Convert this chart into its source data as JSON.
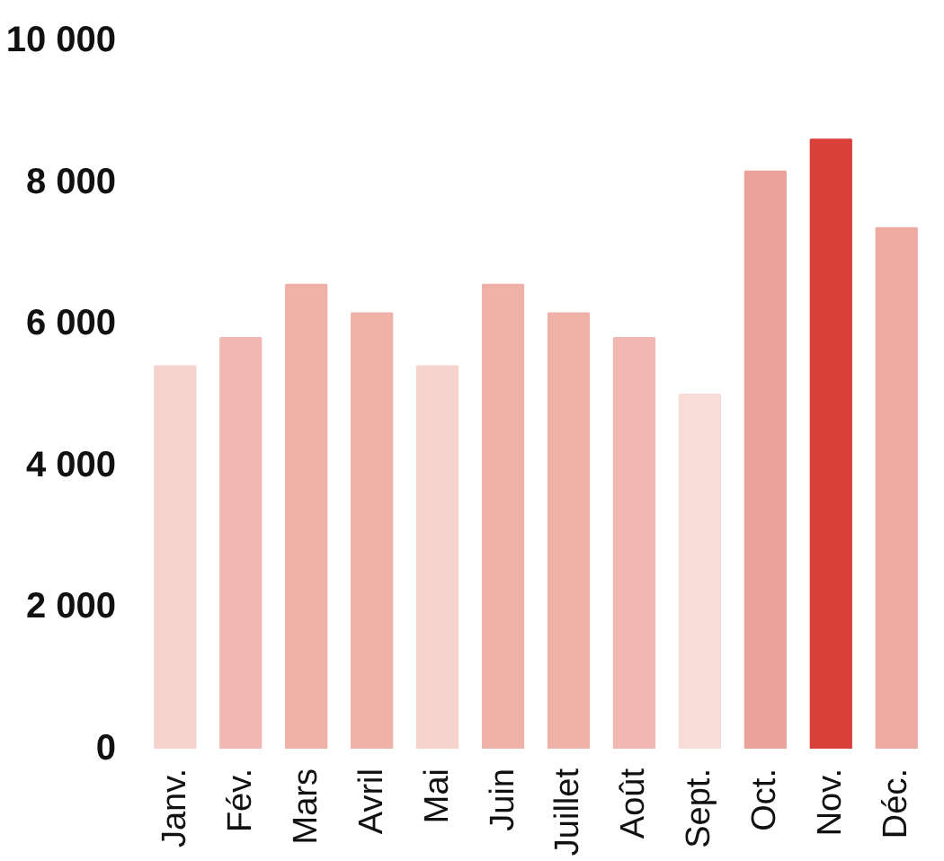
{
  "chart_data": {
    "type": "bar",
    "categories": [
      "Janv.",
      "Fév.",
      "Mars",
      "Avril",
      "Mai",
      "Juin",
      "Juillet",
      "Août",
      "Sept.",
      "Oct.",
      "Nov.",
      "Déc."
    ],
    "values": [
      5400,
      5800,
      6550,
      6150,
      5400,
      6550,
      6150,
      5800,
      5000,
      8150,
      8600,
      7350
    ],
    "colors": [
      "#f5d2cd",
      "#f0b8b1",
      "#efb0a8",
      "#efb0a8",
      "#f5d2cd",
      "#efb0a8",
      "#efb0a8",
      "#f0b8b1",
      "#f7dcd8",
      "#eaa39b",
      "#d9403a",
      "#eeaaa2"
    ],
    "ylim": [
      0,
      10000
    ],
    "yticks": [
      {
        "value": 0,
        "label": "0"
      },
      {
        "value": 2000,
        "label": "2 000"
      },
      {
        "value": 4000,
        "label": "4 000"
      },
      {
        "value": 6000,
        "label": "6 000"
      },
      {
        "value": 8000,
        "label": "8 000"
      },
      {
        "value": 10000,
        "label": "10 000"
      }
    ],
    "grid": false
  }
}
